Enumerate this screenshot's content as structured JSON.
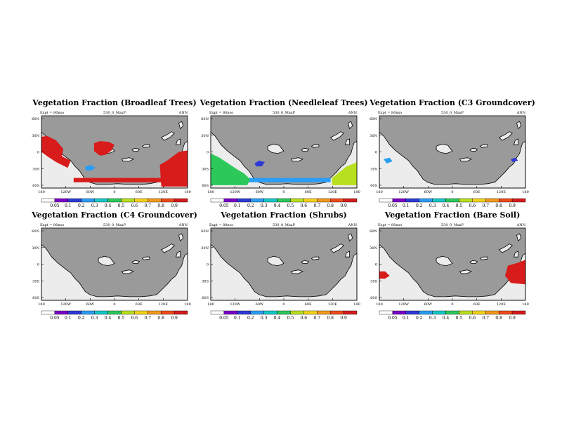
{
  "chart_data": {
    "type": "map-panels",
    "run_label": "530_0_MaxP",
    "season": "ANN",
    "exp_label": "Expt = 80nso",
    "x_ticks": [
      "180",
      "120W",
      "60W",
      "0",
      "60E",
      "120E",
      "180"
    ],
    "y_ticks": [
      "60N",
      "30N",
      "0",
      "30S",
      "60S"
    ],
    "colorbar_levels": [
      "0.05",
      "0.1",
      "0.2",
      "0.3",
      "0.4",
      "0.5",
      "0.6",
      "0.7",
      "0.8",
      "0.9"
    ],
    "colorbar_colors": [
      "#ffffff",
      "#7a00c8",
      "#2f3ad6",
      "#2a9df4",
      "#16c7c7",
      "#2cc95a",
      "#b8e01e",
      "#f5d21a",
      "#f39a1c",
      "#ef4b1c",
      "#d81b1b"
    ],
    "land_color": "#9a9a9a",
    "ocean_color": "#ececec",
    "panels": [
      {
        "title": "Vegetation Fraction (Broadleaf Trees)",
        "exp_label": "Expt = 80nso",
        "patches": [
          {
            "type": "west-coast-strip",
            "level": 9
          },
          {
            "type": "east-block",
            "level": 9
          },
          {
            "type": "island-a",
            "level": 9
          },
          {
            "type": "island-d",
            "level": 2
          },
          {
            "type": "south-band",
            "level": 9
          }
        ]
      },
      {
        "title": "Vegetation Fraction (Needleleaf Trees)",
        "exp_label": "Expt = 80nso",
        "patches": [
          {
            "type": "south-band",
            "level": 2
          },
          {
            "type": "sw-gradient",
            "level": 4
          },
          {
            "type": "se-gradient",
            "level": 5
          },
          {
            "type": "island-b",
            "level": 1
          }
        ]
      },
      {
        "title": "Vegetation Fraction (C3 Groundcover)",
        "exp_label": "Expt = 80nso",
        "patches": [
          {
            "type": "small-west",
            "level": 2
          },
          {
            "type": "small-east",
            "level": 1
          }
        ]
      },
      {
        "title": "Vegetation Fraction (C4 Groundcover)",
        "exp_label": "Expt = 80nso",
        "patches": []
      },
      {
        "title": "Vegetation Fraction (Shrubs)",
        "exp_label": "Expt = 80nso",
        "patches": []
      },
      {
        "title": "Vegetation Fraction (Bare Soil)",
        "exp_label": "Expt = 80nso",
        "patches": [
          {
            "type": "west-small-red",
            "level": 9
          },
          {
            "type": "east-red",
            "level": 9
          }
        ]
      }
    ]
  }
}
